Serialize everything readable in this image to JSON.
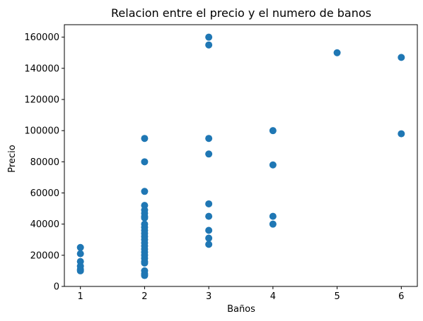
{
  "chart_data": {
    "type": "scatter",
    "title": "Relacion entre el precio y el numero de banos",
    "xlabel": "Baños",
    "ylabel": "Precio",
    "xlim": [
      0.75,
      6.25
    ],
    "ylim": [
      0,
      168000
    ],
    "xticks": [
      1,
      2,
      3,
      4,
      5,
      6
    ],
    "yticks": [
      0,
      20000,
      40000,
      60000,
      80000,
      100000,
      120000,
      140000,
      160000
    ],
    "xtick_labels": [
      "1",
      "2",
      "3",
      "4",
      "5",
      "6"
    ],
    "ytick_labels": [
      "0",
      "20000",
      "40000",
      "60000",
      "80000",
      "100000",
      "120000",
      "140000",
      "160000"
    ],
    "grid": false,
    "color": "#1f77b4",
    "points": [
      {
        "x": 1,
        "y": 25000
      },
      {
        "x": 1,
        "y": 21000
      },
      {
        "x": 1,
        "y": 16000
      },
      {
        "x": 1,
        "y": 13000
      },
      {
        "x": 1,
        "y": 11000
      },
      {
        "x": 1,
        "y": 10000
      },
      {
        "x": 2,
        "y": 95000
      },
      {
        "x": 2,
        "y": 80000
      },
      {
        "x": 2,
        "y": 61000
      },
      {
        "x": 2,
        "y": 52000
      },
      {
        "x": 2,
        "y": 49000
      },
      {
        "x": 2,
        "y": 47000
      },
      {
        "x": 2,
        "y": 45000
      },
      {
        "x": 2,
        "y": 44000
      },
      {
        "x": 2,
        "y": 40000
      },
      {
        "x": 2,
        "y": 38000
      },
      {
        "x": 2,
        "y": 36000
      },
      {
        "x": 2,
        "y": 34000
      },
      {
        "x": 2,
        "y": 32000
      },
      {
        "x": 2,
        "y": 30000
      },
      {
        "x": 2,
        "y": 28000
      },
      {
        "x": 2,
        "y": 26000
      },
      {
        "x": 2,
        "y": 24000
      },
      {
        "x": 2,
        "y": 22000
      },
      {
        "x": 2,
        "y": 20000
      },
      {
        "x": 2,
        "y": 18000
      },
      {
        "x": 2,
        "y": 16000
      },
      {
        "x": 2,
        "y": 15000
      },
      {
        "x": 2,
        "y": 10000
      },
      {
        "x": 2,
        "y": 8000
      },
      {
        "x": 2,
        "y": 7000
      },
      {
        "x": 3,
        "y": 160000
      },
      {
        "x": 3,
        "y": 155000
      },
      {
        "x": 3,
        "y": 95000
      },
      {
        "x": 3,
        "y": 85000
      },
      {
        "x": 3,
        "y": 53000
      },
      {
        "x": 3,
        "y": 45000
      },
      {
        "x": 3,
        "y": 36000
      },
      {
        "x": 3,
        "y": 31000
      },
      {
        "x": 3,
        "y": 27000
      },
      {
        "x": 4,
        "y": 100000
      },
      {
        "x": 4,
        "y": 78000
      },
      {
        "x": 4,
        "y": 45000
      },
      {
        "x": 4,
        "y": 40000
      },
      {
        "x": 5,
        "y": 150000
      },
      {
        "x": 6,
        "y": 147000
      },
      {
        "x": 6,
        "y": 98000
      }
    ]
  }
}
